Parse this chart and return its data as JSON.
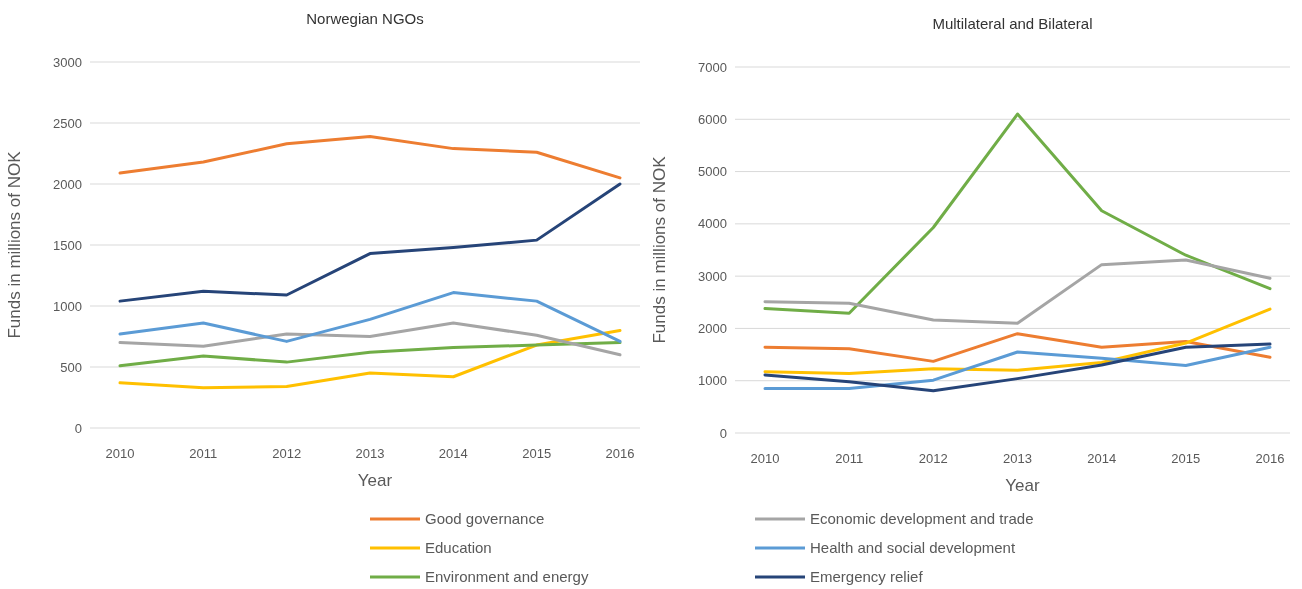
{
  "chart_data": [
    {
      "type": "line",
      "title": "Norwegian NGOs",
      "xlabel": "Year",
      "ylabel": "Funds in millions of NOK",
      "categories": [
        "2010",
        "2011",
        "2012",
        "2013",
        "2014",
        "2015",
        "2016"
      ],
      "ylim": [
        0,
        3000
      ],
      "yticks": [
        0,
        500,
        1000,
        1500,
        2000,
        2500,
        3000
      ],
      "grid": "y",
      "legend": "bottom",
      "series": [
        {
          "name": "Good governance",
          "color": "#ed7d31",
          "values": [
            2090,
            2180,
            2330,
            2390,
            2290,
            2260,
            2050
          ]
        },
        {
          "name": "Education",
          "color": "#ffc000",
          "values": [
            370,
            330,
            340,
            450,
            420,
            680,
            800
          ]
        },
        {
          "name": "Environment and energy",
          "color": "#70ad47",
          "values": [
            510,
            590,
            540,
            620,
            660,
            680,
            700
          ]
        },
        {
          "color": "#a5a5a5",
          "values": [
            700,
            670,
            770,
            750,
            860,
            760,
            600
          ]
        },
        {
          "color": "#5b9bd5",
          "values": [
            770,
            860,
            710,
            890,
            1110,
            1040,
            710
          ]
        },
        {
          "color": "#264478",
          "values": [
            1040,
            1120,
            1090,
            1430,
            1480,
            1540,
            2000
          ]
        }
      ]
    },
    {
      "type": "line",
      "title": "Multilateral and Bilateral",
      "xlabel": "Year",
      "ylabel": "Funds in millions of NOK",
      "categories": [
        "2010",
        "2011",
        "2012",
        "2013",
        "2014",
        "2015",
        "2016"
      ],
      "ylim": [
        0,
        7000
      ],
      "yticks": [
        0,
        1000,
        2000,
        3000,
        4000,
        5000,
        6000,
        7000
      ],
      "grid": "y",
      "legend": "bottom",
      "series": [
        {
          "color": "#ed7d31",
          "values": [
            1640,
            1610,
            1370,
            1900,
            1640,
            1750,
            1450
          ]
        },
        {
          "color": "#ffc000",
          "values": [
            1170,
            1140,
            1230,
            1200,
            1350,
            1720,
            2370
          ]
        },
        {
          "color": "#70ad47",
          "values": [
            2380,
            2290,
            3930,
            6100,
            4250,
            3400,
            2760
          ]
        },
        {
          "name": "Economic development and trade",
          "color": "#a5a5a5",
          "values": [
            2510,
            2480,
            2160,
            2100,
            3220,
            3310,
            2960
          ]
        },
        {
          "name": "Health and social development",
          "color": "#5b9bd5",
          "values": [
            850,
            850,
            1010,
            1550,
            1430,
            1290,
            1640
          ]
        },
        {
          "name": "Emergency relief",
          "color": "#264478",
          "values": [
            1110,
            980,
            810,
            1040,
            1300,
            1640,
            1700
          ]
        }
      ]
    }
  ]
}
